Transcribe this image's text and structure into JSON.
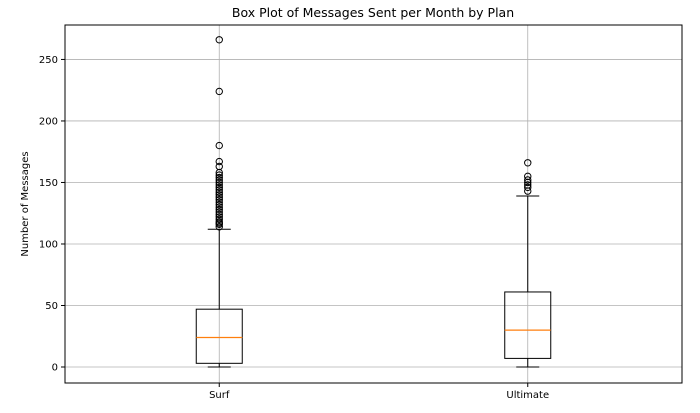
{
  "chart_data": {
    "type": "boxplot",
    "title": "Box Plot of Messages Sent per Month by Plan",
    "xlabel": "",
    "ylabel": "Number of Messages",
    "ylim": [
      -13,
      278
    ],
    "yticks": [
      0,
      50,
      100,
      150,
      200,
      250
    ],
    "grid": true,
    "categories": [
      "Surf",
      "Ultimate"
    ],
    "boxes": [
      {
        "name": "Surf",
        "whisker_low": 0,
        "q1": 3,
        "median": 24,
        "q3": 47,
        "whisker_high": 112,
        "outliers": [
          114,
          116,
          117,
          118,
          120,
          122,
          124,
          126,
          128,
          130,
          132,
          134,
          136,
          138,
          140,
          142,
          144,
          146,
          148,
          150,
          152,
          154,
          156,
          158,
          163,
          167,
          180,
          224,
          266
        ]
      },
      {
        "name": "Ultimate",
        "whisker_low": 0,
        "q1": 7,
        "median": 30,
        "q3": 61,
        "whisker_high": 139,
        "outliers": [
          143,
          146,
          148,
          150,
          152,
          155,
          166
        ]
      }
    ],
    "colors": {
      "median": "#ff7f0e",
      "box": "#000000",
      "grid": "#b0b0b0"
    }
  }
}
